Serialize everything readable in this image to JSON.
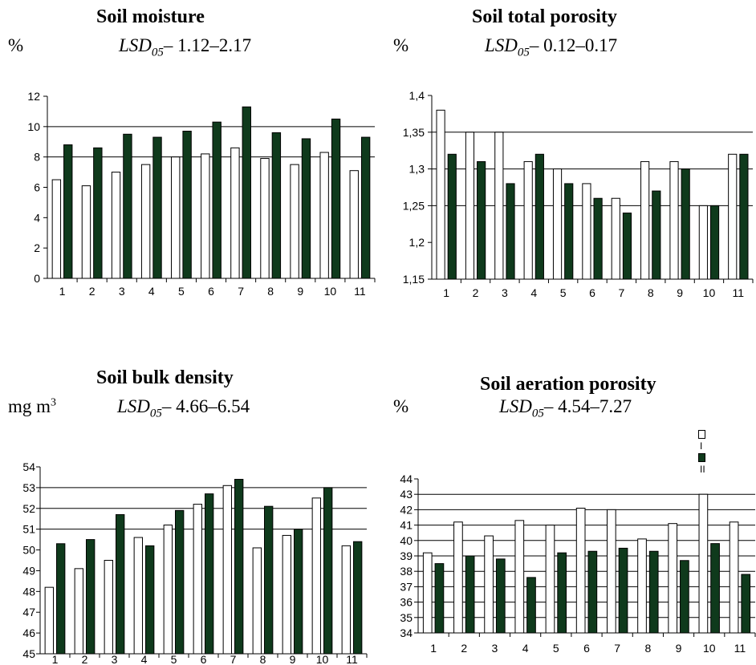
{
  "colors": {
    "series_I": "#ffffff",
    "series_II": "#0f3a1c",
    "outline": "#000000"
  },
  "legend": {
    "items": [
      "I",
      "II"
    ]
  },
  "chart_data": [
    {
      "type": "bar",
      "title": "Soil moisture",
      "unit": "%",
      "lsd_label": "LSD",
      "lsd_sub": "05",
      "lsd_value": "– 1.12–2.17",
      "categories": [
        "1",
        "2",
        "3",
        "4",
        "5",
        "6",
        "7",
        "8",
        "9",
        "10",
        "11"
      ],
      "yticks": [
        "0",
        "2",
        "4",
        "6",
        "8",
        "10",
        "12"
      ],
      "ylim": [
        0,
        12
      ],
      "gridlines": [
        8,
        10
      ],
      "series": [
        {
          "name": "I",
          "values": [
            6.5,
            6.1,
            7.0,
            7.5,
            8.0,
            8.2,
            8.6,
            7.9,
            7.5,
            8.3,
            7.1
          ]
        },
        {
          "name": "II",
          "values": [
            8.8,
            8.6,
            9.5,
            9.3,
            9.7,
            10.3,
            11.3,
            9.6,
            9.2,
            10.5,
            9.3
          ]
        }
      ]
    },
    {
      "type": "bar",
      "title": "Soil total porosity",
      "unit": "%",
      "lsd_label": "LSD",
      "lsd_sub": "05",
      "lsd_value": "– 0.12–0.17",
      "categories": [
        "1",
        "2",
        "3",
        "4",
        "5",
        "6",
        "7",
        "8",
        "9",
        "10",
        "11"
      ],
      "yticks": [
        "1,15",
        "1,2",
        "1,25",
        "1,3",
        "1,35",
        "1,4"
      ],
      "ylim": [
        1.15,
        1.4
      ],
      "gridlines": [
        1.25,
        1.3,
        1.35
      ],
      "series": [
        {
          "name": "I",
          "values": [
            1.38,
            1.35,
            1.35,
            1.31,
            1.3,
            1.28,
            1.26,
            1.31,
            1.31,
            1.25,
            1.32
          ]
        },
        {
          "name": "II",
          "values": [
            1.32,
            1.31,
            1.28,
            1.32,
            1.28,
            1.26,
            1.24,
            1.27,
            1.3,
            1.25,
            1.32
          ]
        }
      ]
    },
    {
      "type": "bar",
      "title": "Soil bulk density",
      "unit": "mg m",
      "unit_sup": "3",
      "lsd_label": "LSD",
      "lsd_sub": "05",
      "lsd_value": "– 4.66–6.54",
      "categories": [
        "1",
        "2",
        "3",
        "4",
        "5",
        "6",
        "7",
        "8",
        "9",
        "10",
        "11"
      ],
      "yticks": [
        "45",
        "46",
        "47",
        "48",
        "49",
        "50",
        "51",
        "52",
        "53",
        "54"
      ],
      "ylim": [
        45,
        54
      ],
      "gridlines": [
        51,
        52,
        53
      ],
      "series": [
        {
          "name": "I",
          "values": [
            48.2,
            49.1,
            49.5,
            50.6,
            51.2,
            52.2,
            53.1,
            50.1,
            50.7,
            52.5,
            50.2
          ]
        },
        {
          "name": "II",
          "values": [
            50.3,
            50.5,
            51.7,
            50.2,
            51.9,
            52.7,
            53.4,
            52.1,
            51.0,
            53.0,
            50.4
          ]
        }
      ]
    },
    {
      "type": "bar",
      "title": "Soil aeration porosity",
      "unit": "%",
      "lsd_label": "LSD",
      "lsd_sub": "05",
      "lsd_value": "– 4.54–7.27",
      "categories": [
        "1",
        "2",
        "3",
        "4",
        "5",
        "6",
        "7",
        "8",
        "9",
        "10",
        "11"
      ],
      "yticks": [
        "34",
        "35",
        "36",
        "37",
        "38",
        "39",
        "40",
        "41",
        "42",
        "43",
        "44"
      ],
      "ylim": [
        34,
        44
      ],
      "gridlines": [
        35,
        36,
        37,
        38,
        39,
        40,
        41,
        42,
        43
      ],
      "legend_position": "top-right",
      "series": [
        {
          "name": "I",
          "values": [
            39.2,
            41.2,
            40.3,
            41.3,
            41.0,
            42.1,
            42.0,
            40.1,
            41.1,
            43.0,
            41.2
          ]
        },
        {
          "name": "II",
          "values": [
            38.5,
            39.0,
            38.8,
            37.6,
            39.2,
            39.3,
            39.5,
            39.3,
            38.7,
            39.8,
            37.8
          ]
        }
      ]
    }
  ]
}
